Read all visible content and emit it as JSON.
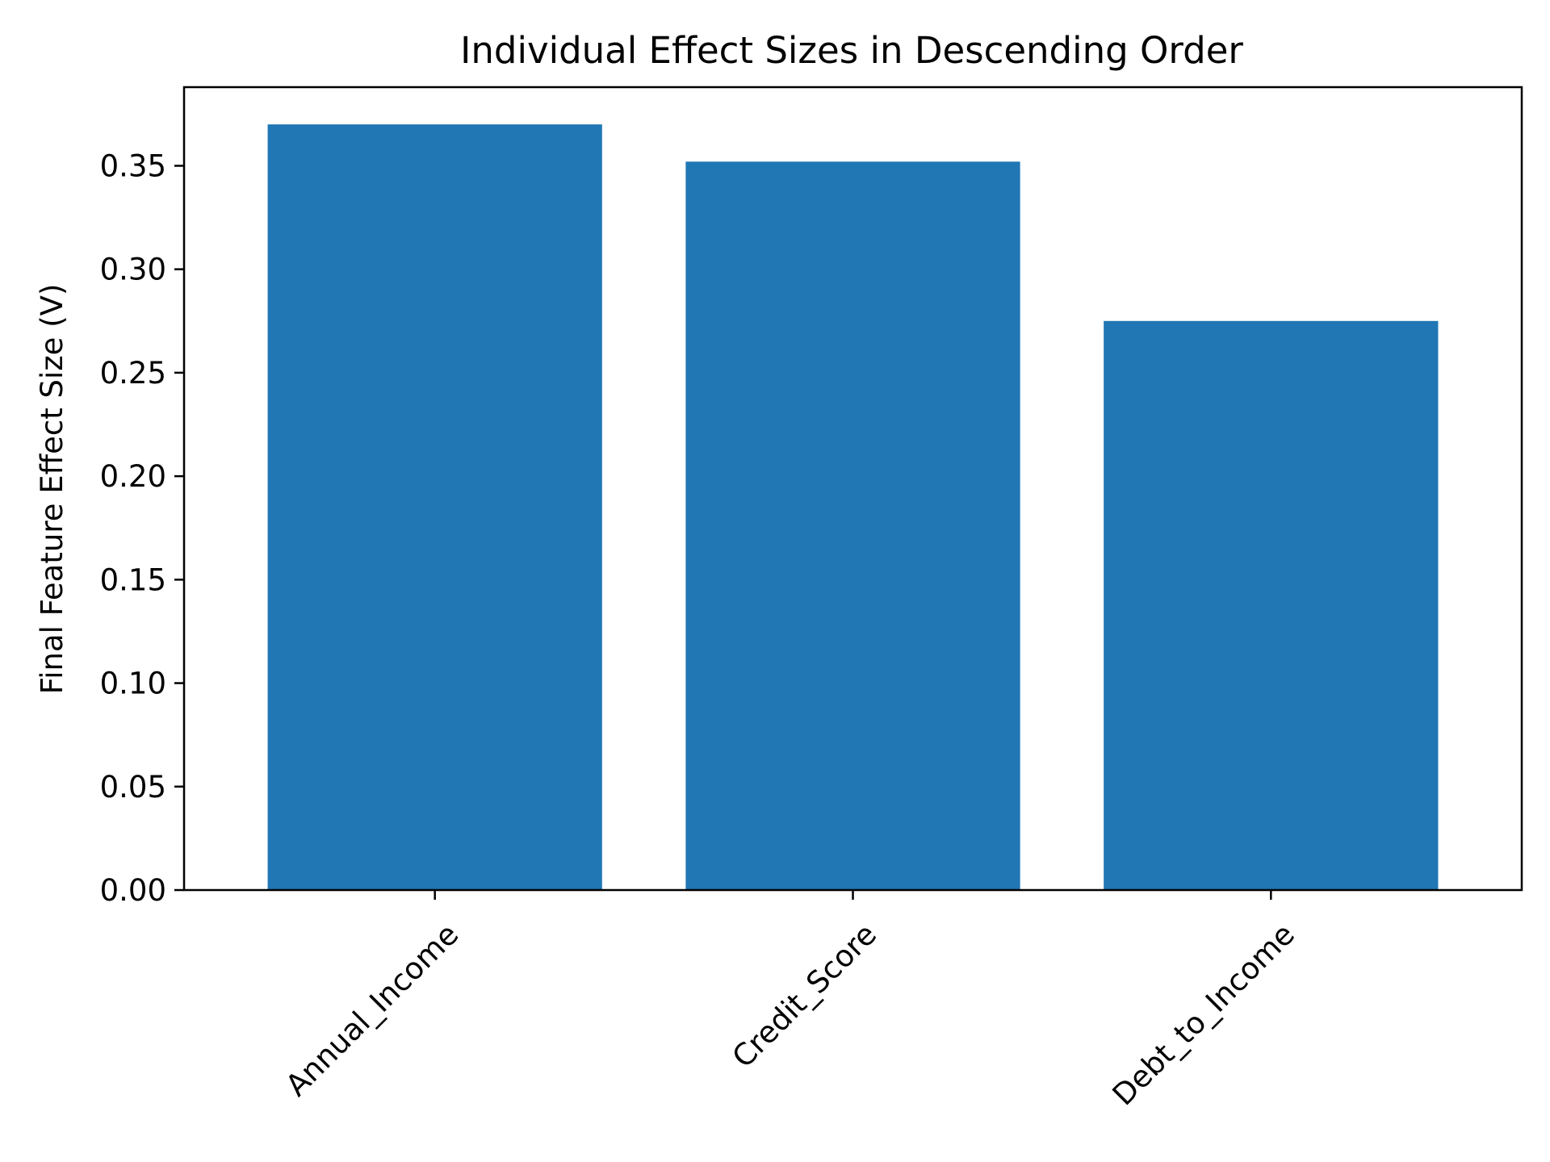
{
  "chart_data": {
    "type": "bar",
    "title": "Individual Effect Sizes in Descending Order",
    "xlabel": "",
    "ylabel": "Final Feature Effect Size (V)",
    "categories": [
      "Annual_Income",
      "Credit_Score",
      "Debt_to_Income"
    ],
    "values": [
      0.37,
      0.352,
      0.275
    ],
    "ylim": [
      0,
      0.388
    ],
    "yticks": [
      0.0,
      0.05,
      0.1,
      0.15,
      0.2,
      0.25,
      0.3,
      0.35
    ],
    "ytick_labels": [
      "0.00",
      "0.05",
      "0.10",
      "0.15",
      "0.20",
      "0.25",
      "0.30",
      "0.35"
    ],
    "xtick_rotation": 45,
    "grid": false,
    "legend": "none",
    "bar_color": "#2077b4"
  }
}
